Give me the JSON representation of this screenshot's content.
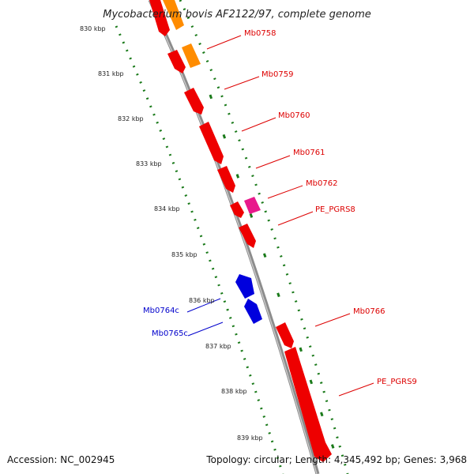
{
  "title": "Mycobacterium bovis AF2122/97, complete genome",
  "accession_text": "Accession: NC_002945",
  "summary_text": "Topology: circular; Length: 4,345,492 bp; Genes: 3,968",
  "ticks": [
    "830 kbp",
    "831 kbp",
    "832 kbp",
    "833 kbp",
    "834 kbp",
    "835 kbp",
    "836 kbp",
    "837 kbp",
    "838 kbp",
    "839 kbp"
  ],
  "gene_labels": [
    "Mb0758",
    "Mb0759",
    "Mb0760",
    "Mb0761",
    "Mb0762",
    "PE_PGRS8",
    "Mb0764c",
    "Mb0765c",
    "Mb0766",
    "PE_PGRS9"
  ],
  "colors": {
    "forward_gene": "#ee0000",
    "reverse_gene": "#0000dd",
    "rna_feature": "#ff8c00",
    "other_feature": "#e8198b",
    "backbone": "#8c8c8c",
    "gc_ticks": "#1a7a1a",
    "label_forward": "#dd0000",
    "label_reverse": "#0000cc"
  }
}
